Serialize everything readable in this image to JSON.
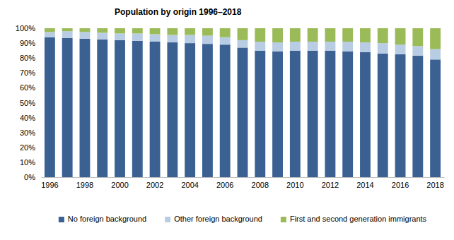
{
  "chart_data": {
    "type": "bar",
    "title": "Population by origin 1996–2018",
    "stacked": true,
    "grid": false,
    "legend": "bottom",
    "categories": [
      "1996",
      null,
      "1998",
      null,
      "2000",
      null,
      "2002",
      null,
      "2004",
      null,
      "2006",
      null,
      "2008",
      null,
      "2010",
      null,
      "2012",
      null,
      "2014",
      null,
      "2016",
      null,
      "2018"
    ],
    "series": [
      {
        "name": "No foreign background",
        "color": "#3b6193",
        "values": [
          94,
          93.5,
          93,
          92.5,
          92,
          91.5,
          91,
          90.5,
          90,
          89.5,
          89,
          87,
          85,
          84.5,
          85,
          85,
          85,
          84.5,
          84,
          83,
          82.5,
          81.5,
          79
        ]
      },
      {
        "name": "Other foreign background",
        "color": "#b8cce4",
        "values": [
          3.5,
          4.5,
          4.5,
          4.5,
          4.5,
          5,
          5,
          5,
          5.5,
          5.5,
          5,
          5,
          6,
          6,
          6,
          6,
          6,
          6.5,
          6.5,
          7,
          6.5,
          6.5,
          7
        ]
      },
      {
        "name": "First and second generation immigrants",
        "color": "#9bbb59",
        "values": [
          2.5,
          2,
          2.5,
          3,
          3.5,
          3.5,
          4,
          4.5,
          4.5,
          5,
          6,
          8,
          9,
          9.5,
          9,
          9,
          9,
          9,
          9.5,
          10,
          11,
          12,
          14
        ]
      }
    ],
    "ylim": [
      0,
      100
    ],
    "yticks": [
      {
        "value": 0,
        "label": "0%"
      },
      {
        "value": 10,
        "label": "10%"
      },
      {
        "value": 20,
        "label": "20%"
      },
      {
        "value": 30,
        "label": "30%"
      },
      {
        "value": 40,
        "label": "40%"
      },
      {
        "value": 50,
        "label": "50%"
      },
      {
        "value": 60,
        "label": "60%"
      },
      {
        "value": 70,
        "label": "70%"
      },
      {
        "value": 80,
        "label": "80%"
      },
      {
        "value": 90,
        "label": "90%"
      },
      {
        "value": 100,
        "label": "100%"
      }
    ]
  }
}
